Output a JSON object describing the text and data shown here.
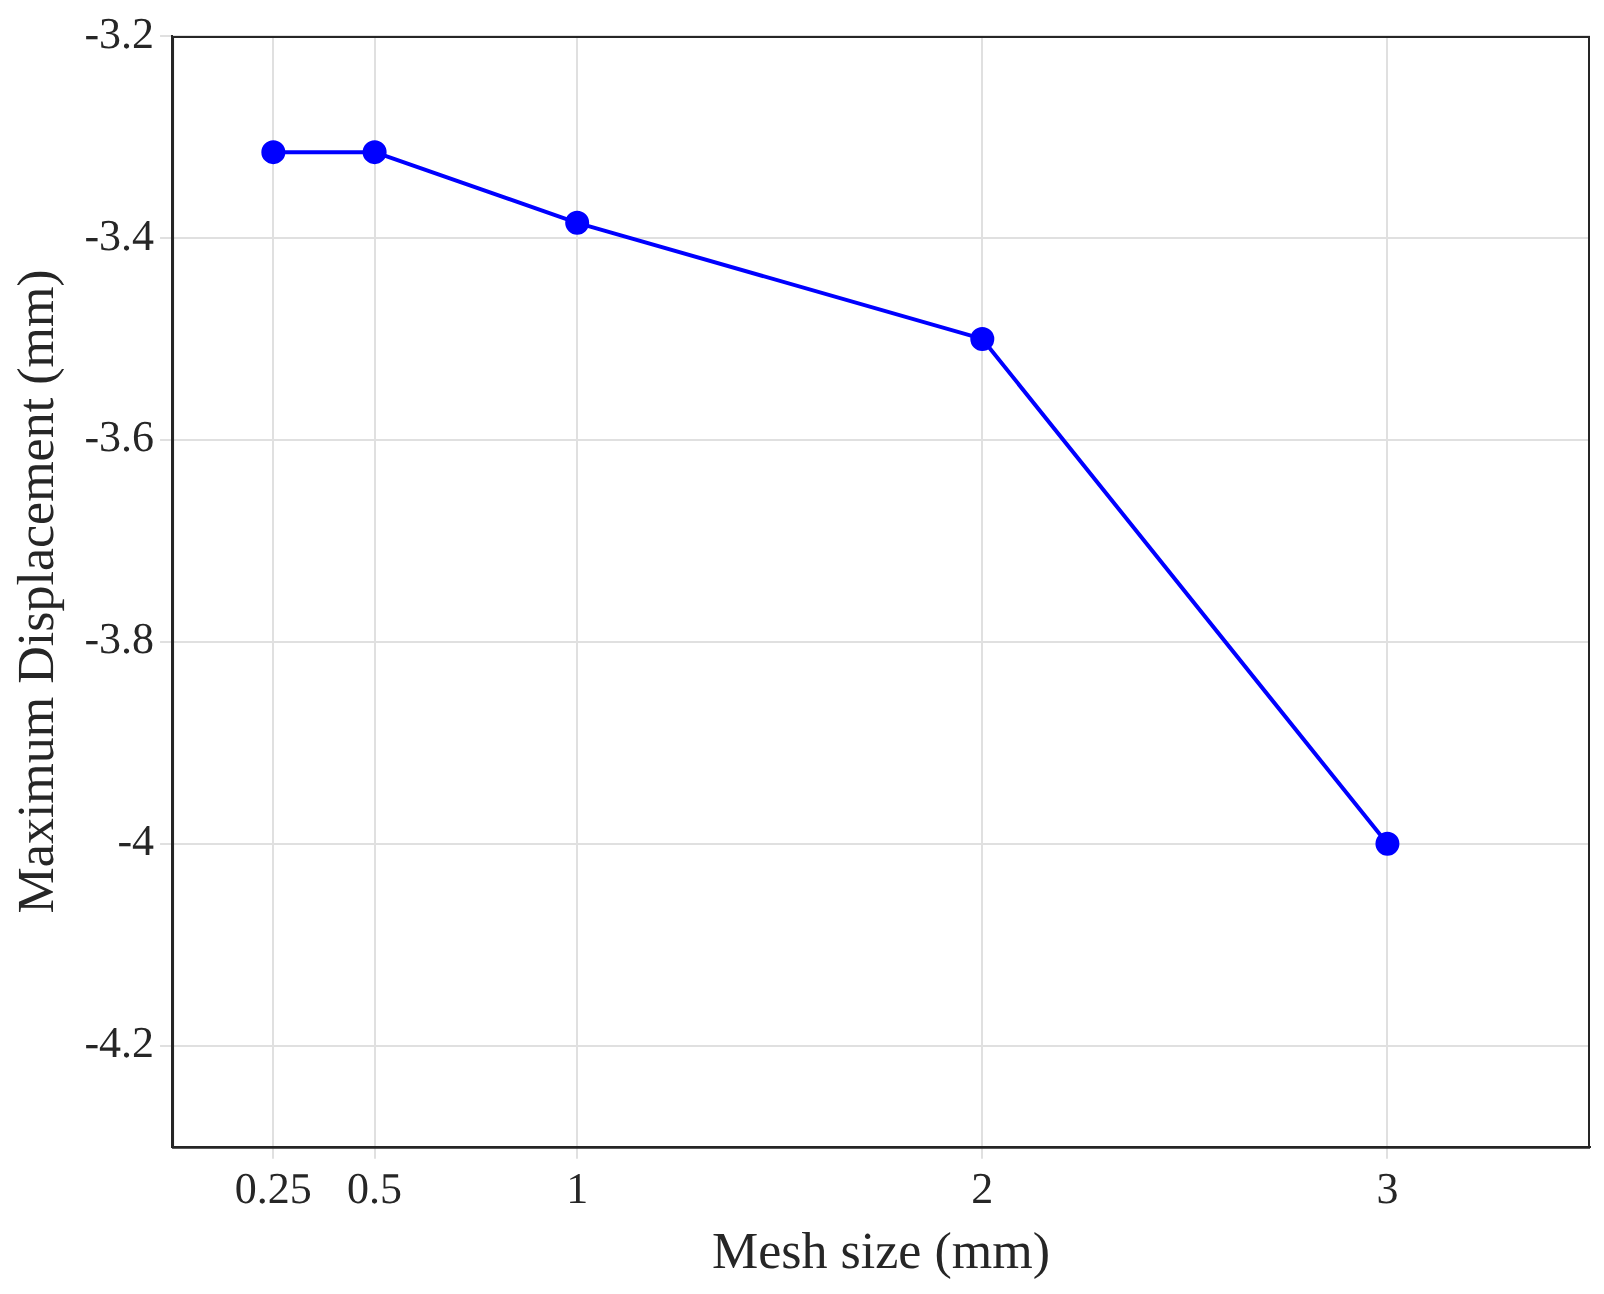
{
  "chart_data": {
    "type": "line",
    "xlabel": "Mesh size (mm)",
    "ylabel": "Maximum Displacement (mm)",
    "x": [
      0.25,
      0.5,
      1,
      2,
      3
    ],
    "series": [
      {
        "color": "#0000ff",
        "values": [
          -3.315,
          -3.315,
          -3.385,
          -3.5,
          -4.0
        ]
      }
    ],
    "xlim": [
      0,
      3.5
    ],
    "xticks": [
      0.25,
      0.5,
      1,
      2,
      3
    ],
    "ylim": [
      -4.3,
      -3.2
    ],
    "yticks": [
      -4.2,
      -4,
      -3.8,
      -3.6,
      -3.4,
      -3.2
    ],
    "grid": true,
    "marker": "circle",
    "line_style": "solid",
    "legend": false
  }
}
